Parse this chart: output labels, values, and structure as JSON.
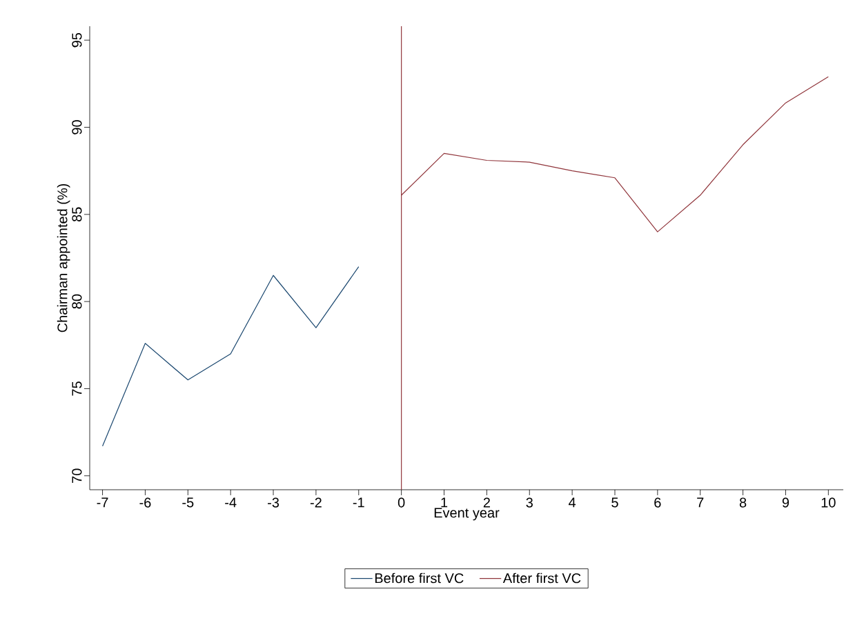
{
  "chart_data": {
    "type": "line",
    "xlabel": "Event year",
    "ylabel": "Chairman appointed (%)",
    "series": [
      {
        "name": "Before first VC",
        "color": "#1a476f",
        "x": [
          -7,
          -6,
          -5,
          -4,
          -3,
          -2,
          -1
        ],
        "values": [
          71.7,
          77.6,
          75.5,
          77.0,
          81.5,
          78.5,
          82.0
        ]
      },
      {
        "name": "After first VC",
        "color": "#90353b",
        "x": [
          0,
          1,
          2,
          3,
          4,
          5,
          6,
          7,
          8,
          9,
          10
        ],
        "values": [
          86.1,
          88.5,
          88.1,
          88.0,
          87.5,
          87.1,
          84.0,
          86.1,
          89.0,
          91.4,
          92.9
        ]
      }
    ],
    "xlim": [
      -7.3,
      10.35
    ],
    "ylim": [
      69.2,
      95.8
    ],
    "xticks": [
      -7,
      -6,
      -5,
      -4,
      -3,
      -2,
      -1,
      0,
      1,
      2,
      3,
      4,
      5,
      6,
      7,
      8,
      9,
      10
    ],
    "yticks": [
      70,
      75,
      80,
      85,
      90,
      95
    ],
    "ref_lines": [
      {
        "axis": "x",
        "value": 0,
        "color": "#90353b"
      }
    ],
    "grid": false,
    "legend": "bottom",
    "marker": "none",
    "line_style": "solid"
  }
}
